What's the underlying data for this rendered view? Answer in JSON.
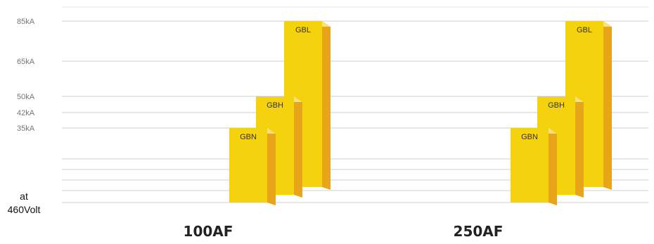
{
  "chart_data": {
    "type": "bar",
    "title": "",
    "xlabel": "",
    "ylabel": "",
    "y_ticks": [
      "85kA",
      "65kA",
      "50kA",
      "42kA",
      "35kA"
    ],
    "y_tick_values": [
      85,
      65,
      50,
      42,
      35
    ],
    "baseline_label": [
      "at",
      "460Volt"
    ],
    "categories": [
      "100AF",
      "250AF"
    ],
    "series": [
      {
        "name": "GBN",
        "values": [
          35,
          35
        ]
      },
      {
        "name": "GBH",
        "values": [
          50,
          50
        ]
      },
      {
        "name": "GBL",
        "values": [
          85,
          85
        ]
      }
    ],
    "grid": true,
    "colors": {
      "front": "#f4d20e",
      "side": "#e8a51a",
      "top": "#f7e27a",
      "grid": "#cfcfcf"
    }
  }
}
